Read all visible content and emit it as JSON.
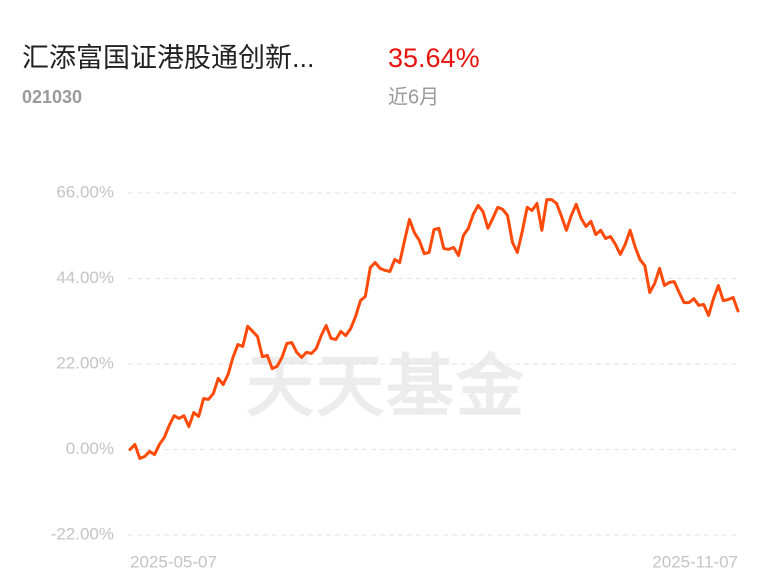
{
  "header": {
    "title": "汇添富国证港股通创新...",
    "code": "021030",
    "return": "35.64%",
    "period": "近6月"
  },
  "watermark": "天天基金",
  "chart_data": {
    "type": "line",
    "categories": [
      "2025-05-07",
      null,
      null,
      null,
      null,
      null,
      null,
      null,
      null,
      null,
      null,
      null,
      null,
      null,
      null,
      null,
      null,
      null,
      null,
      null,
      null,
      null,
      null,
      null,
      null,
      null,
      null,
      null,
      null,
      null,
      null,
      null,
      null,
      null,
      null,
      null,
      null,
      null,
      null,
      null,
      null,
      null,
      null,
      null,
      null,
      null,
      null,
      null,
      null,
      null,
      null,
      null,
      null,
      null,
      null,
      null,
      null,
      null,
      null,
      null,
      null,
      null,
      null,
      null,
      null,
      null,
      null,
      null,
      null,
      null,
      null,
      null,
      null,
      null,
      null,
      null,
      null,
      null,
      null,
      null,
      null,
      null,
      null,
      null,
      null,
      null,
      null,
      null,
      null,
      null,
      null,
      null,
      null,
      null,
      null,
      null,
      null,
      null,
      null,
      null,
      null,
      null,
      null,
      null,
      null,
      null,
      null,
      null,
      null,
      null,
      null,
      null,
      null,
      null,
      null,
      null,
      null,
      null,
      null,
      null,
      null,
      null,
      null,
      null,
      "2025-11-07"
    ],
    "series": [
      {
        "color": "#ff4a0a",
        "values": [
          0,
          1.3,
          -2.3,
          -1.8,
          -0.5,
          -1.3,
          1.3,
          3.1,
          6.2,
          8.7,
          8,
          8.7,
          5.9,
          9.5,
          8.5,
          13.1,
          12.9,
          14.4,
          18.3,
          16.7,
          19.3,
          23.7,
          27,
          26.5,
          31.7,
          30.4,
          29.1,
          23.9,
          24.2,
          20.8,
          21.4,
          23.7,
          27.3,
          27.5,
          25,
          23.7,
          25,
          24.7,
          26,
          29.3,
          31.9,
          28.6,
          28.3,
          30.4,
          29.3,
          31.1,
          34.2,
          38.3,
          39.4,
          46.8,
          48.1,
          46.6,
          46.1,
          45.8,
          48.9,
          48.1,
          53.8,
          59.2,
          55.8,
          53.8,
          50.4,
          50.7,
          56.6,
          56.9,
          51.7,
          51.5,
          52,
          49.9,
          55.1,
          56.9,
          60.5,
          62.8,
          61.2,
          56.9,
          59.5,
          62.3,
          61.8,
          60.2,
          53.3,
          50.7,
          56.1,
          62.3,
          61.5,
          63.3,
          56.4,
          64.3,
          64.3,
          63.3,
          60,
          56.4,
          60.2,
          63.1,
          59.5,
          57.4,
          58.7,
          55.3,
          56.4,
          54.3,
          54.8,
          52.8,
          50.2,
          52.8,
          56.4,
          52.2,
          48.9,
          47.3,
          40.4,
          42.7,
          46.6,
          42.2,
          43,
          43.2,
          40.4,
          37.8,
          37.8,
          38.8,
          37.1,
          37.3,
          34.5,
          38.8,
          42.2,
          38.3,
          38.6,
          39.1,
          35.64
        ]
      }
    ],
    "ylim": [
      -22,
      66
    ],
    "yticks": [
      {
        "value": -22,
        "label": "-22.00%"
      },
      {
        "value": 0,
        "label": "0.00%"
      },
      {
        "value": 22,
        "label": "22.00%"
      },
      {
        "value": 44,
        "label": "44.00%"
      },
      {
        "value": 66,
        "label": "66.00%"
      }
    ],
    "grid": true
  }
}
